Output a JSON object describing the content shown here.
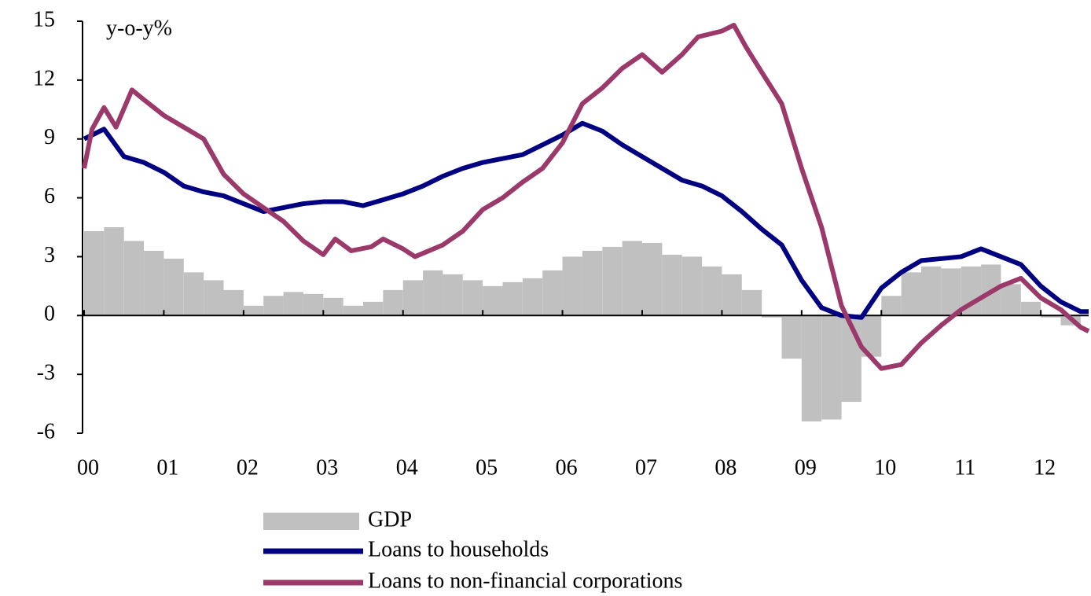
{
  "chart_data": {
    "type": "combo",
    "ylabel": "y-o-y%",
    "xlim": [
      2000,
      2012.6
    ],
    "xticks": [
      {
        "value": 2000,
        "label": "00"
      },
      {
        "value": 2001,
        "label": "01"
      },
      {
        "value": 2002,
        "label": "02"
      },
      {
        "value": 2003,
        "label": "03"
      },
      {
        "value": 2004,
        "label": "04"
      },
      {
        "value": 2005,
        "label": "05"
      },
      {
        "value": 2006,
        "label": "06"
      },
      {
        "value": 2007,
        "label": "07"
      },
      {
        "value": 2008,
        "label": "08"
      },
      {
        "value": 2009,
        "label": "09"
      },
      {
        "value": 2010,
        "label": "10"
      },
      {
        "value": 2011,
        "label": "11"
      },
      {
        "value": 2012,
        "label": "12"
      }
    ],
    "ylim": [
      -6,
      15
    ],
    "yticks": [
      -6,
      -3,
      0,
      3,
      6,
      9,
      12,
      15
    ],
    "grid": false,
    "series": [
      {
        "name": "GDP",
        "type": "bar",
        "color": "#c0c0c0",
        "x": [
          2000,
          2000.25,
          2000.5,
          2000.75,
          2001,
          2001.25,
          2001.5,
          2001.75,
          2002,
          2002.25,
          2002.5,
          2002.75,
          2003,
          2003.25,
          2003.5,
          2003.75,
          2004,
          2004.25,
          2004.5,
          2004.75,
          2005,
          2005.25,
          2005.5,
          2005.75,
          2006,
          2006.25,
          2006.5,
          2006.75,
          2007,
          2007.25,
          2007.5,
          2007.75,
          2008,
          2008.25,
          2008.5,
          2008.75,
          2009,
          2009.25,
          2009.5,
          2009.75,
          2010,
          2010.25,
          2010.5,
          2010.75,
          2011,
          2011.25,
          2011.5,
          2011.75,
          2012,
          2012.25
        ],
        "values": [
          4.3,
          4.5,
          3.8,
          3.3,
          2.9,
          2.2,
          1.8,
          1.3,
          0.5,
          1.0,
          1.2,
          1.1,
          0.9,
          0.5,
          0.7,
          1.3,
          1.8,
          2.3,
          2.1,
          1.8,
          1.5,
          1.7,
          1.9,
          2.3,
          3.0,
          3.3,
          3.5,
          3.8,
          3.7,
          3.1,
          3.0,
          2.5,
          2.1,
          1.3,
          -0.1,
          -2.2,
          -5.4,
          -5.3,
          -4.4,
          -2.1,
          1.0,
          2.2,
          2.5,
          2.4,
          2.5,
          2.6,
          1.6,
          0.7,
          -0.1,
          -0.5
        ]
      },
      {
        "name": "Loans to households",
        "type": "line",
        "color": "#000080",
        "x": [
          2000,
          2000.25,
          2000.5,
          2000.75,
          2001,
          2001.25,
          2001.5,
          2001.75,
          2002,
          2002.25,
          2002.5,
          2002.75,
          2003,
          2003.25,
          2003.5,
          2003.75,
          2004,
          2004.25,
          2004.5,
          2004.75,
          2005,
          2005.25,
          2005.5,
          2005.75,
          2006,
          2006.25,
          2006.5,
          2006.75,
          2007,
          2007.25,
          2007.5,
          2007.75,
          2008,
          2008.25,
          2008.5,
          2008.75,
          2009,
          2009.25,
          2009.5,
          2009.75,
          2010,
          2010.25,
          2010.5,
          2010.75,
          2011,
          2011.25,
          2011.5,
          2011.75,
          2012,
          2012.25,
          2012.5,
          2012.6
        ],
        "values": [
          9.0,
          9.5,
          8.1,
          7.8,
          7.3,
          6.6,
          6.3,
          6.1,
          5.7,
          5.3,
          5.5,
          5.7,
          5.8,
          5.8,
          5.6,
          5.9,
          6.2,
          6.6,
          7.1,
          7.5,
          7.8,
          8.0,
          8.2,
          8.7,
          9.2,
          9.8,
          9.4,
          8.7,
          8.1,
          7.5,
          6.9,
          6.6,
          6.1,
          5.3,
          4.4,
          3.6,
          1.8,
          0.4,
          0.0,
          -0.1,
          1.4,
          2.2,
          2.8,
          2.9,
          3.0,
          3.4,
          3.0,
          2.6,
          1.5,
          0.7,
          0.2,
          0.2
        ]
      },
      {
        "name": "Loans to non-financial corporations",
        "type": "line",
        "color": "#9b3a6a",
        "x": [
          2000,
          2000.1,
          2000.25,
          2000.4,
          2000.6,
          2000.75,
          2001,
          2001.25,
          2001.5,
          2001.75,
          2002,
          2002.25,
          2002.5,
          2002.75,
          2003,
          2003.15,
          2003.35,
          2003.6,
          2003.75,
          2004,
          2004.15,
          2004.5,
          2004.75,
          2005,
          2005.25,
          2005.5,
          2005.75,
          2006,
          2006.25,
          2006.5,
          2006.75,
          2007,
          2007.25,
          2007.5,
          2007.7,
          2008,
          2008.15,
          2008.3,
          2008.5,
          2008.75,
          2009,
          2009.25,
          2009.5,
          2009.75,
          2010,
          2010.25,
          2010.5,
          2010.75,
          2011,
          2011.25,
          2011.5,
          2011.75,
          2012,
          2012.25,
          2012.5,
          2012.6
        ],
        "values": [
          7.5,
          9.5,
          10.6,
          9.6,
          11.5,
          11.0,
          10.2,
          9.6,
          9.0,
          7.2,
          6.2,
          5.5,
          4.8,
          3.8,
          3.1,
          3.9,
          3.3,
          3.5,
          3.9,
          3.4,
          3.0,
          3.6,
          4.3,
          5.4,
          6.0,
          6.8,
          7.5,
          8.8,
          10.8,
          11.6,
          12.6,
          13.3,
          12.4,
          13.3,
          14.2,
          14.5,
          14.8,
          13.7,
          12.4,
          10.8,
          7.5,
          4.5,
          0.5,
          -1.6,
          -2.7,
          -2.5,
          -1.4,
          -0.5,
          0.3,
          0.9,
          1.5,
          1.9,
          0.9,
          0.3,
          -0.6,
          -0.8
        ]
      }
    ]
  }
}
